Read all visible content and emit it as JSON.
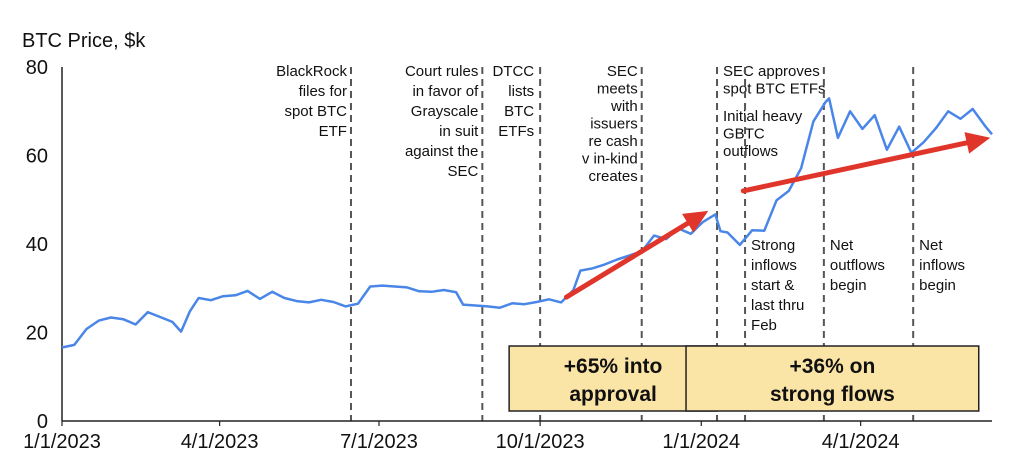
{
  "chart_data": {
    "type": "line",
    "title": "BTC Price, $k",
    "xlabel": "",
    "ylabel": "",
    "ylim": [
      0,
      80
    ],
    "xlim": [
      "2023-01-01",
      "2024-06-15"
    ],
    "yticks": [
      "0",
      "20",
      "40",
      "60",
      "80"
    ],
    "xticks": [
      {
        "date": "2023-01-01",
        "label": "1/1/2023"
      },
      {
        "date": "2023-04-01",
        "label": "4/1/2023"
      },
      {
        "date": "2023-07-01",
        "label": "7/1/2023"
      },
      {
        "date": "2023-10-01",
        "label": "10/1/2023"
      },
      {
        "date": "2024-01-01",
        "label": "1/1/2024"
      },
      {
        "date": "2024-04-01",
        "label": "4/1/2024"
      }
    ],
    "grid": false,
    "colors": {
      "line": "#4A86E8",
      "arrow": "#E0352B",
      "box_fill": "#FBE5A6",
      "box_border": "#222222",
      "event_line": "#555555"
    },
    "series": [
      {
        "x": [
          "2023-01-01",
          "2023-01-08",
          "2023-01-15",
          "2023-01-22",
          "2023-01-29",
          "2023-02-05",
          "2023-02-12",
          "2023-02-19",
          "2023-02-26",
          "2023-03-05",
          "2023-03-10",
          "2023-03-15",
          "2023-03-20",
          "2023-03-27",
          "2023-04-03",
          "2023-04-10",
          "2023-04-17",
          "2023-04-24",
          "2023-05-01",
          "2023-05-08",
          "2023-05-15",
          "2023-05-22",
          "2023-05-29",
          "2023-06-05",
          "2023-06-12",
          "2023-06-19",
          "2023-06-26",
          "2023-07-03",
          "2023-07-10",
          "2023-07-17",
          "2023-07-24",
          "2023-07-31",
          "2023-08-07",
          "2023-08-14",
          "2023-08-18",
          "2023-08-25",
          "2023-09-01",
          "2023-09-08",
          "2023-09-15",
          "2023-09-22",
          "2023-09-29",
          "2023-10-06",
          "2023-10-13",
          "2023-10-20",
          "2023-10-24",
          "2023-10-31",
          "2023-11-07",
          "2023-11-14",
          "2023-11-21",
          "2023-11-28",
          "2023-12-05",
          "2023-12-12",
          "2023-12-19",
          "2023-12-26",
          "2024-01-02",
          "2024-01-09",
          "2024-01-12",
          "2024-01-16",
          "2024-01-23",
          "2024-01-30",
          "2024-02-06",
          "2024-02-13",
          "2024-02-20",
          "2024-02-27",
          "2024-03-05",
          "2024-03-12",
          "2024-03-14",
          "2024-03-19",
          "2024-03-26",
          "2024-04-02",
          "2024-04-09",
          "2024-04-16",
          "2024-04-23",
          "2024-04-30",
          "2024-05-07",
          "2024-05-14",
          "2024-05-21",
          "2024-05-28",
          "2024-06-04",
          "2024-06-11",
          "2024-06-15"
        ],
        "values": [
          16.6,
          17.2,
          20.8,
          22.7,
          23.4,
          23.0,
          21.8,
          24.6,
          23.5,
          22.4,
          20.2,
          24.8,
          27.8,
          27.3,
          28.2,
          28.4,
          29.4,
          27.6,
          29.2,
          27.8,
          27.1,
          26.8,
          27.4,
          26.9,
          25.9,
          26.5,
          30.4,
          30.6,
          30.4,
          30.2,
          29.3,
          29.2,
          29.6,
          29.1,
          26.3,
          26.1,
          25.9,
          25.6,
          26.6,
          26.4,
          26.9,
          27.5,
          26.8,
          29.6,
          34.0,
          34.5,
          35.4,
          36.5,
          37.4,
          38.3,
          41.9,
          41.1,
          43.5,
          42.3,
          45.0,
          46.7,
          42.9,
          42.6,
          39.8,
          43.1,
          43.0,
          49.9,
          52.0,
          57.1,
          67.7,
          72.1,
          72.9,
          64.0,
          70.0,
          66.0,
          69.1,
          61.3,
          66.5,
          60.6,
          63.0,
          66.2,
          70.0,
          68.3,
          70.5,
          66.7,
          64.8
        ]
      }
    ],
    "events": [
      {
        "date": "2023-06-15",
        "label": [
          "BlackRock",
          "files for",
          "spot BTC",
          "ETF"
        ]
      },
      {
        "date": "2023-08-29",
        "label": [
          "Court rules",
          "in favor of",
          "Grayscale",
          "in suit",
          "against the",
          "SEC"
        ]
      },
      {
        "date": "2023-10-01",
        "label": [
          "DTCC",
          "lists",
          "BTC",
          "ETFs"
        ]
      },
      {
        "date": "2023-11-28",
        "label": [
          "SEC",
          "meets",
          "with",
          "issuers",
          "re cash",
          "v in-kind",
          "creates"
        ]
      },
      {
        "date": "2024-01-10",
        "label": [
          "SEC approves",
          "spot BTC ETFs",
          "Initial heavy",
          "GBTC",
          "outflows"
        ]
      },
      {
        "date": "2024-01-26",
        "label": [
          "Strong",
          "inflows",
          "start &",
          "last thru",
          "Feb"
        ]
      },
      {
        "date": "2024-03-11",
        "label": [
          "Net",
          "outflows",
          "begin"
        ]
      },
      {
        "date": "2024-05-01",
        "label": [
          "Net",
          "inflows",
          "begin"
        ]
      }
    ],
    "trend_arrows": [
      {
        "from": [
          "2023-10-16",
          28
        ],
        "to": [
          "2024-01-05",
          47.5
        ]
      },
      {
        "from": [
          "2024-01-25",
          52
        ],
        "to": [
          "2024-06-14",
          64
        ]
      }
    ],
    "boxes": [
      {
        "text": [
          "+65% into",
          "approval"
        ],
        "from": "2023-10-01",
        "to": "2024-01-10"
      },
      {
        "text": [
          "+36% on",
          "strong flows"
        ],
        "from": "2024-01-10",
        "to": "2024-06-12"
      }
    ]
  }
}
